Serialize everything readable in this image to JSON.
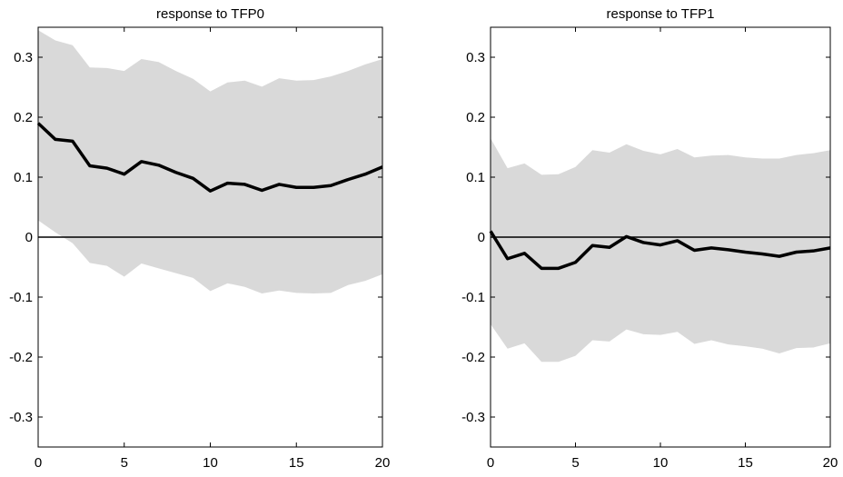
{
  "chart_data": [
    {
      "type": "line",
      "title": "response to TFP0",
      "xlabel": "",
      "ylabel": "",
      "xlim": [
        0,
        20
      ],
      "ylim": [
        -0.35,
        0.35
      ],
      "xticks": [
        0,
        5,
        10,
        15,
        20
      ],
      "yticks": [
        -0.3,
        -0.2,
        -0.1,
        0,
        0.1,
        0.2,
        0.3
      ],
      "xtick_labels": [
        "0",
        "5",
        "10",
        "15",
        "20"
      ],
      "ytick_labels": [
        "-0.3",
        "-0.2",
        "-0.1",
        "0",
        "0.1",
        "0.2",
        "0.3"
      ],
      "grid": false,
      "zero_line": true,
      "band_color": "#d9d9d9",
      "line_color": "#000000",
      "x": [
        0,
        1,
        2,
        3,
        4,
        5,
        6,
        7,
        8,
        9,
        10,
        11,
        12,
        13,
        14,
        15,
        16,
        17,
        18,
        19,
        20
      ],
      "series": [
        {
          "values": [
            0.19,
            0.163,
            0.16,
            0.119,
            0.115,
            0.105,
            0.126,
            0.12,
            0.108,
            0.098,
            0.077,
            0.09,
            0.088,
            0.078,
            0.088,
            0.083,
            0.083,
            0.086,
            0.096,
            0.105,
            0.117
          ]
        }
      ],
      "band_upper": [
        0.345,
        0.328,
        0.32,
        0.283,
        0.282,
        0.277,
        0.297,
        0.292,
        0.277,
        0.264,
        0.243,
        0.258,
        0.261,
        0.251,
        0.265,
        0.261,
        0.262,
        0.268,
        0.277,
        0.288,
        0.297
      ],
      "band_lower": [
        0.028,
        0.008,
        -0.01,
        -0.043,
        -0.048,
        -0.066,
        -0.044,
        -0.052,
        -0.06,
        -0.068,
        -0.09,
        -0.077,
        -0.083,
        -0.094,
        -0.089,
        -0.093,
        -0.094,
        -0.093,
        -0.08,
        -0.073,
        -0.062
      ]
    },
    {
      "type": "line",
      "title": "response to TFP1",
      "xlabel": "",
      "ylabel": "",
      "xlim": [
        0,
        20
      ],
      "ylim": [
        -0.35,
        0.35
      ],
      "xticks": [
        0,
        5,
        10,
        15,
        20
      ],
      "yticks": [
        -0.3,
        -0.2,
        -0.1,
        0,
        0.1,
        0.2,
        0.3
      ],
      "xtick_labels": [
        "0",
        "5",
        "10",
        "15",
        "20"
      ],
      "ytick_labels": [
        "-0.3",
        "-0.2",
        "-0.1",
        "0",
        "0.1",
        "0.2",
        "0.3"
      ],
      "grid": false,
      "zero_line": true,
      "band_color": "#d9d9d9",
      "line_color": "#000000",
      "x": [
        0,
        1,
        2,
        3,
        4,
        5,
        6,
        7,
        8,
        9,
        10,
        11,
        12,
        13,
        14,
        15,
        16,
        17,
        18,
        19,
        20
      ],
      "series": [
        {
          "values": [
            0.01,
            -0.036,
            -0.027,
            -0.052,
            -0.052,
            -0.042,
            -0.014,
            -0.017,
            0.001,
            -0.009,
            -0.013,
            -0.006,
            -0.022,
            -0.018,
            -0.021,
            -0.025,
            -0.028,
            -0.032,
            -0.025,
            -0.023,
            -0.018
          ]
        }
      ],
      "band_upper": [
        0.165,
        0.115,
        0.123,
        0.104,
        0.105,
        0.117,
        0.145,
        0.141,
        0.155,
        0.144,
        0.138,
        0.147,
        0.133,
        0.136,
        0.137,
        0.133,
        0.131,
        0.131,
        0.137,
        0.14,
        0.145
      ],
      "band_lower": [
        -0.145,
        -0.186,
        -0.177,
        -0.208,
        -0.208,
        -0.198,
        -0.172,
        -0.174,
        -0.154,
        -0.162,
        -0.163,
        -0.158,
        -0.178,
        -0.172,
        -0.179,
        -0.182,
        -0.186,
        -0.194,
        -0.185,
        -0.184,
        -0.177
      ]
    }
  ]
}
